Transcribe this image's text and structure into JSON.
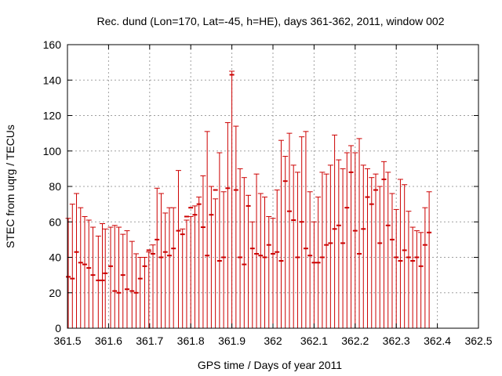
{
  "chart_data": {
    "type": "errorbar",
    "title": "Rec. dund (Lon=170, Lat=-45, h=HE), days 361-362, 2011, window 002",
    "xlabel": "GPS time / Days of year 2011",
    "ylabel": "STEC from uqrg / TECUs",
    "xlim": [
      361.5,
      362.5
    ],
    "ylim": [
      0,
      160
    ],
    "xticks": [
      361.5,
      361.6,
      361.7,
      361.8,
      361.9,
      362,
      362.1,
      362.2,
      362.3,
      362.4,
      362.5
    ],
    "xtick_labels": [
      "361.5",
      "361.6",
      "361.7",
      "361.8",
      "361.9",
      "362",
      "362.1",
      "362.2",
      "362.3",
      "362.4",
      "362.5"
    ],
    "yticks": [
      0,
      20,
      40,
      60,
      80,
      100,
      120,
      140,
      160
    ],
    "ytick_labels": [
      "0",
      "20",
      "40",
      "60",
      "80",
      "100",
      "120",
      "140",
      "160"
    ],
    "grid": true,
    "color": "#cc0000",
    "bar_lower_bound": 0,
    "error_upper_values": [
      [
        361.502,
        62
      ],
      [
        361.512,
        70
      ],
      [
        361.522,
        76
      ],
      [
        361.532,
        68
      ],
      [
        361.542,
        63
      ],
      [
        361.552,
        61
      ],
      [
        361.562,
        57
      ],
      [
        361.575,
        52
      ],
      [
        361.585,
        59
      ],
      [
        361.592,
        56
      ],
      [
        361.605,
        57
      ],
      [
        361.615,
        58
      ],
      [
        361.625,
        57
      ],
      [
        361.635,
        53
      ],
      [
        361.645,
        55
      ],
      [
        361.657,
        49
      ],
      [
        361.667,
        42
      ],
      [
        361.677,
        40
      ],
      [
        361.688,
        40
      ],
      [
        361.698,
        43
      ],
      [
        361.708,
        47
      ],
      [
        361.718,
        79
      ],
      [
        361.728,
        76
      ],
      [
        361.738,
        65
      ],
      [
        361.748,
        68
      ],
      [
        361.758,
        68
      ],
      [
        361.77,
        89
      ],
      [
        361.78,
        56
      ],
      [
        361.79,
        61
      ],
      [
        361.8,
        63
      ],
      [
        361.81,
        69
      ],
      [
        361.82,
        74
      ],
      [
        361.83,
        86
      ],
      [
        361.84,
        111
      ],
      [
        361.85,
        80
      ],
      [
        361.86,
        73
      ],
      [
        361.87,
        99
      ],
      [
        361.88,
        77
      ],
      [
        361.89,
        116
      ],
      [
        361.9,
        145
      ],
      [
        361.91,
        114
      ],
      [
        361.92,
        90
      ],
      [
        361.93,
        85
      ],
      [
        361.94,
        75
      ],
      [
        361.95,
        60
      ],
      [
        361.96,
        87
      ],
      [
        361.97,
        76
      ],
      [
        361.98,
        74
      ],
      [
        361.99,
        63
      ],
      [
        362.0,
        62
      ],
      [
        362.01,
        78
      ],
      [
        362.02,
        106
      ],
      [
        362.03,
        97
      ],
      [
        362.04,
        110
      ],
      [
        362.05,
        92
      ],
      [
        362.06,
        88
      ],
      [
        362.07,
        108
      ],
      [
        362.08,
        111
      ],
      [
        362.09,
        77
      ],
      [
        362.1,
        60
      ],
      [
        362.11,
        74
      ],
      [
        362.12,
        88
      ],
      [
        362.13,
        87
      ],
      [
        362.14,
        92
      ],
      [
        362.15,
        109
      ],
      [
        362.16,
        95
      ],
      [
        362.17,
        90
      ],
      [
        362.18,
        99
      ],
      [
        362.19,
        103
      ],
      [
        362.2,
        99
      ],
      [
        362.21,
        107
      ],
      [
        362.22,
        92
      ],
      [
        362.23,
        90
      ],
      [
        362.24,
        85
      ],
      [
        362.25,
        87
      ],
      [
        362.26,
        80
      ],
      [
        362.27,
        94
      ],
      [
        362.28,
        88
      ],
      [
        362.29,
        76
      ],
      [
        362.3,
        67
      ],
      [
        362.31,
        84
      ],
      [
        362.32,
        81
      ],
      [
        362.33,
        66
      ],
      [
        362.34,
        57
      ],
      [
        362.35,
        55
      ],
      [
        362.36,
        54
      ],
      [
        362.37,
        68
      ],
      [
        362.38,
        77
      ]
    ],
    "marker_values": [
      [
        361.502,
        29
      ],
      [
        361.512,
        28
      ],
      [
        361.522,
        43
      ],
      [
        361.532,
        37
      ],
      [
        361.542,
        36
      ],
      [
        361.552,
        34
      ],
      [
        361.562,
        30
      ],
      [
        361.575,
        27
      ],
      [
        361.585,
        27
      ],
      [
        361.592,
        31
      ],
      [
        361.605,
        35
      ],
      [
        361.615,
        21
      ],
      [
        361.625,
        20
      ],
      [
        361.635,
        30
      ],
      [
        361.645,
        22
      ],
      [
        361.657,
        21
      ],
      [
        361.667,
        20
      ],
      [
        361.677,
        28
      ],
      [
        361.688,
        35
      ],
      [
        361.698,
        44
      ],
      [
        361.708,
        42
      ],
      [
        361.718,
        50
      ],
      [
        361.728,
        40
      ],
      [
        361.738,
        43
      ],
      [
        361.748,
        41
      ],
      [
        361.758,
        45
      ],
      [
        361.77,
        55
      ],
      [
        361.78,
        53
      ],
      [
        361.79,
        63
      ],
      [
        361.8,
        68
      ],
      [
        361.81,
        64
      ],
      [
        361.82,
        70
      ],
      [
        361.83,
        57
      ],
      [
        361.84,
        41
      ],
      [
        361.85,
        64
      ],
      [
        361.86,
        78
      ],
      [
        361.87,
        38
      ],
      [
        361.88,
        40
      ],
      [
        361.89,
        79
      ],
      [
        361.9,
        143
      ],
      [
        361.91,
        78
      ],
      [
        361.92,
        40
      ],
      [
        361.93,
        36
      ],
      [
        361.94,
        69
      ],
      [
        361.95,
        45
      ],
      [
        361.96,
        42
      ],
      [
        361.97,
        41
      ],
      [
        361.98,
        40
      ],
      [
        361.99,
        47
      ],
      [
        362.0,
        42
      ],
      [
        362.01,
        43
      ],
      [
        362.02,
        38
      ],
      [
        362.03,
        83
      ],
      [
        362.04,
        66
      ],
      [
        362.05,
        61
      ],
      [
        362.06,
        40
      ],
      [
        362.07,
        60
      ],
      [
        362.08,
        45
      ],
      [
        362.09,
        41
      ],
      [
        362.1,
        37
      ],
      [
        362.11,
        37
      ],
      [
        362.12,
        40
      ],
      [
        362.13,
        47
      ],
      [
        362.14,
        48
      ],
      [
        362.15,
        56
      ],
      [
        362.16,
        58
      ],
      [
        362.17,
        48
      ],
      [
        362.18,
        68
      ],
      [
        362.19,
        88
      ],
      [
        362.2,
        55
      ],
      [
        362.21,
        42
      ],
      [
        362.22,
        56
      ],
      [
        362.23,
        74
      ],
      [
        362.24,
        70
      ],
      [
        362.25,
        78
      ],
      [
        362.26,
        48
      ],
      [
        362.27,
        84
      ],
      [
        362.28,
        58
      ],
      [
        362.29,
        50
      ],
      [
        362.3,
        40
      ],
      [
        362.31,
        38
      ],
      [
        362.32,
        44
      ],
      [
        362.33,
        40
      ],
      [
        362.34,
        38
      ],
      [
        362.35,
        40
      ],
      [
        362.36,
        35
      ],
      [
        362.37,
        47
      ],
      [
        362.38,
        54
      ]
    ]
  }
}
